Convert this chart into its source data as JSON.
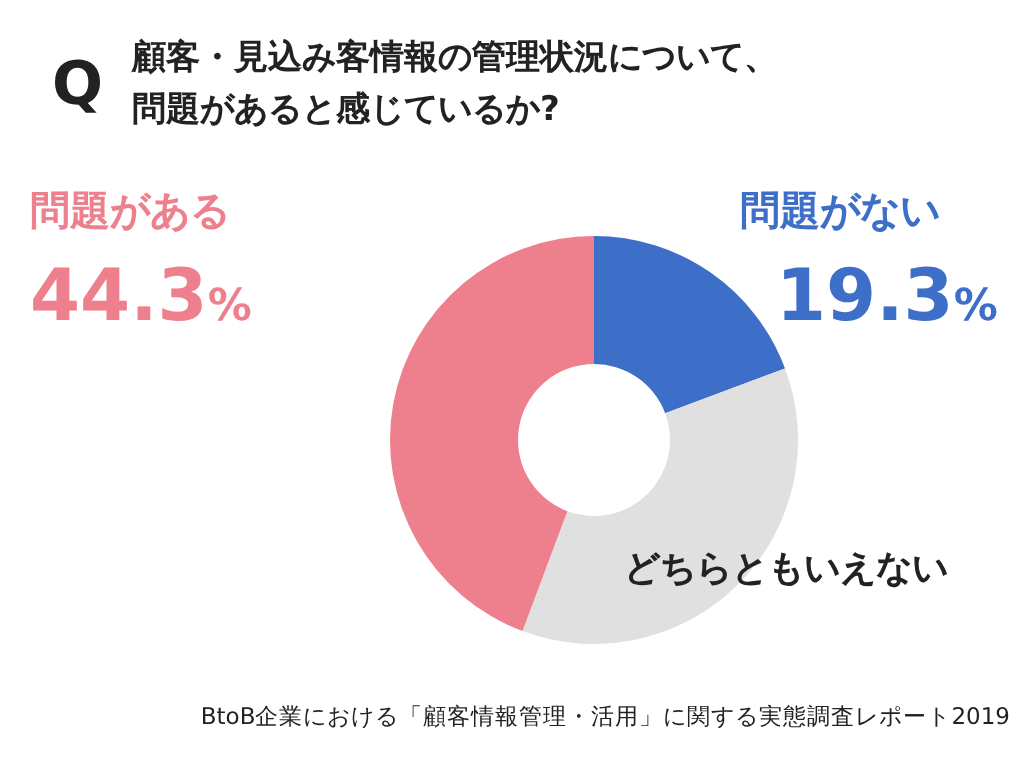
{
  "chart_data": {
    "type": "donut",
    "title": "顧客・見込み客情報の管理状況について、問題があると感じているか?",
    "categories": [
      "問題がない",
      "どちらともいえない",
      "問題がある"
    ],
    "values": [
      19.3,
      36.4,
      44.3
    ],
    "colors": [
      "#3d6fc8",
      "#e0e0e0",
      "#ee7f8c"
    ],
    "value_labels": [
      "19.3%",
      null,
      "44.3%"
    ],
    "annotations": [
      "Q",
      "BtoB企業における「顧客情報管理・活用」に関する実態調査レポート2019"
    ]
  }
}
